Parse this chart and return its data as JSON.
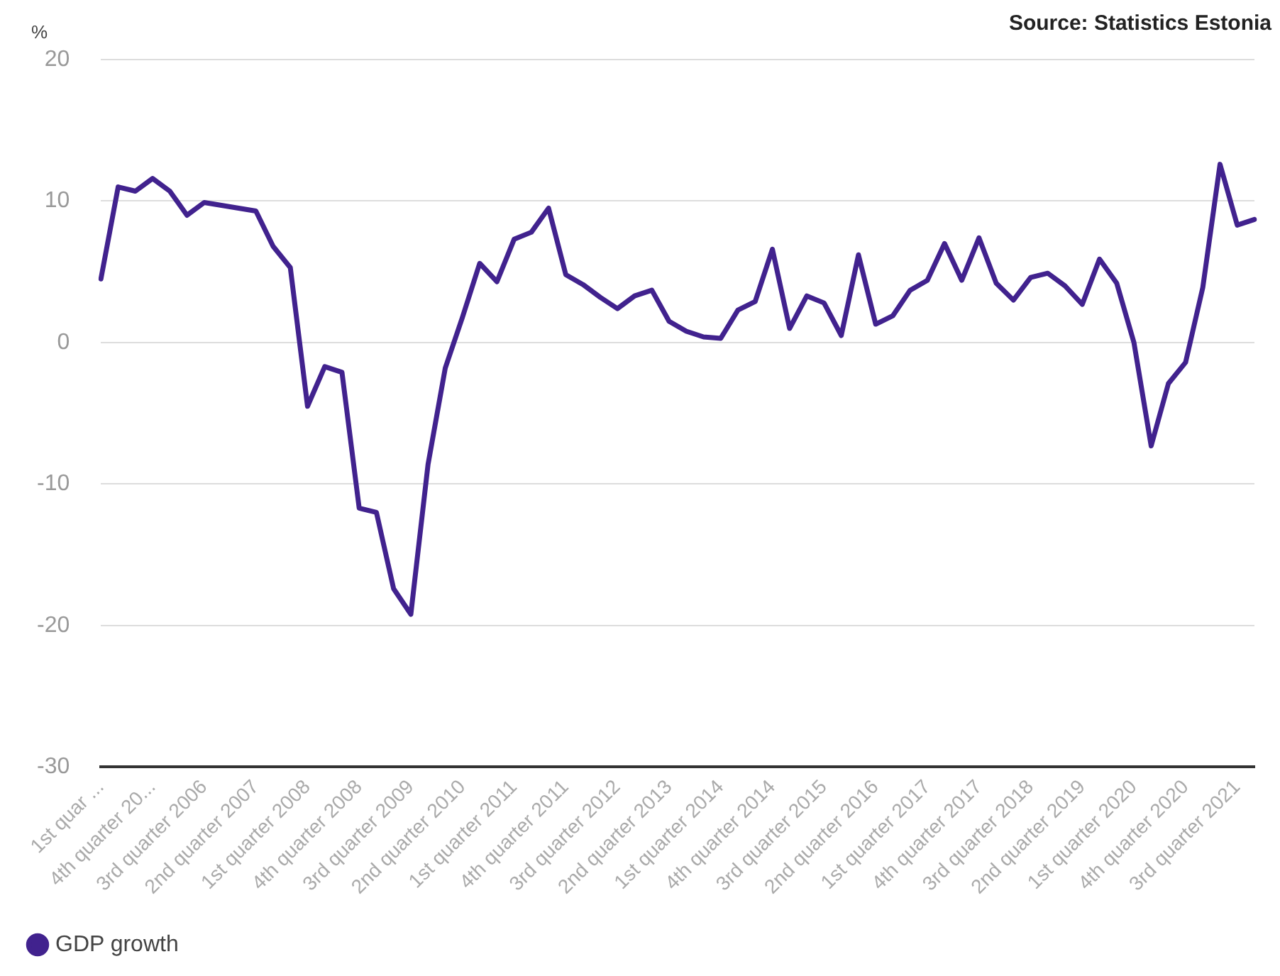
{
  "chart_data": {
    "type": "line",
    "ylabel": "%",
    "annotations": [
      "Source: Statistics Estonia"
    ],
    "categories": [
      "1st quar ...",
      null,
      null,
      "4th quarter 20...",
      null,
      null,
      "3rd quarter 2006",
      null,
      null,
      "2nd quarter 2007",
      null,
      null,
      "1st quarter 2008",
      null,
      null,
      "4th quarter 2008",
      null,
      null,
      "3rd quarter 2009",
      null,
      null,
      "2nd quarter 2010",
      null,
      null,
      "1st quarter 2011",
      null,
      null,
      "4th quarter 2011",
      null,
      null,
      "3rd quarter 2012",
      null,
      null,
      "2nd quarter 2013",
      null,
      null,
      "1st quarter 2014",
      null,
      null,
      "4th quarter 2014",
      null,
      null,
      "3rd quarter 2015",
      null,
      null,
      "2nd quarter 2016",
      null,
      null,
      "1st quarter 2017",
      null,
      null,
      "4th quarter 2017",
      null,
      null,
      "3rd quarter 2018",
      null,
      null,
      "2nd quarter 2019",
      null,
      null,
      "1st quarter 2020",
      null,
      null,
      "4th quarter 2020",
      null,
      null,
      "3rd quarter 2021",
      null
    ],
    "series": [
      {
        "name": "GDP growth",
        "color": "#41228e",
        "values": [
          4.5,
          11.0,
          10.7,
          11.6,
          10.7,
          9.0,
          9.9,
          9.7,
          9.5,
          9.3,
          6.8,
          5.3,
          -4.5,
          -1.7,
          -2.1,
          -11.7,
          -12.0,
          -17.4,
          -19.2,
          -8.6,
          -1.8,
          1.8,
          5.6,
          4.3,
          7.3,
          7.8,
          9.5,
          4.8,
          4.1,
          3.2,
          2.4,
          3.3,
          3.7,
          1.5,
          0.8,
          0.4,
          0.3,
          2.3,
          2.9,
          6.6,
          1.0,
          3.3,
          2.8,
          0.5,
          6.2,
          1.3,
          1.9,
          3.7,
          4.4,
          7.0,
          4.4,
          7.4,
          4.2,
          3.0,
          4.6,
          4.9,
          4.0,
          2.7,
          5.9,
          4.2,
          0.0,
          -7.3,
          -2.9,
          -1.4,
          3.9,
          12.6,
          8.3,
          8.7
        ]
      }
    ],
    "ylim": [
      -30,
      20
    ],
    "yticks": [
      -30,
      -20,
      -10,
      0,
      10,
      20
    ],
    "grid": "y",
    "legend": "bottom left",
    "line_style": "solid"
  }
}
